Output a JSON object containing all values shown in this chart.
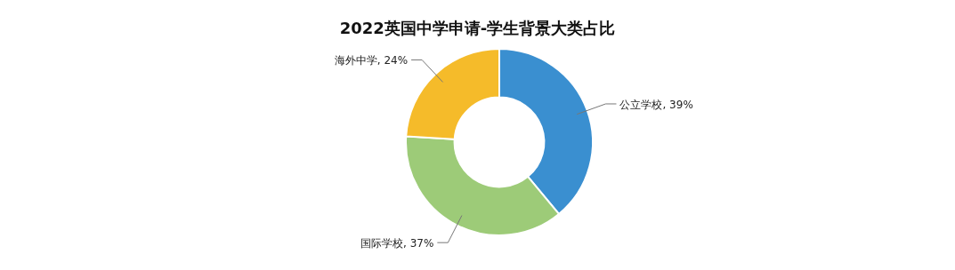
{
  "chart_data": {
    "type": "donut",
    "title": "2022英国中学申请-学生背景大类占比",
    "categories": [
      "公立学校",
      "国际学校",
      "海外中学"
    ],
    "values": [
      39,
      37,
      24
    ],
    "colors": [
      "#3a8fd0",
      "#9dcb78",
      "#f5bb2a"
    ],
    "value_labels": [
      ", 39%",
      ", 37%",
      ", 24%"
    ]
  }
}
